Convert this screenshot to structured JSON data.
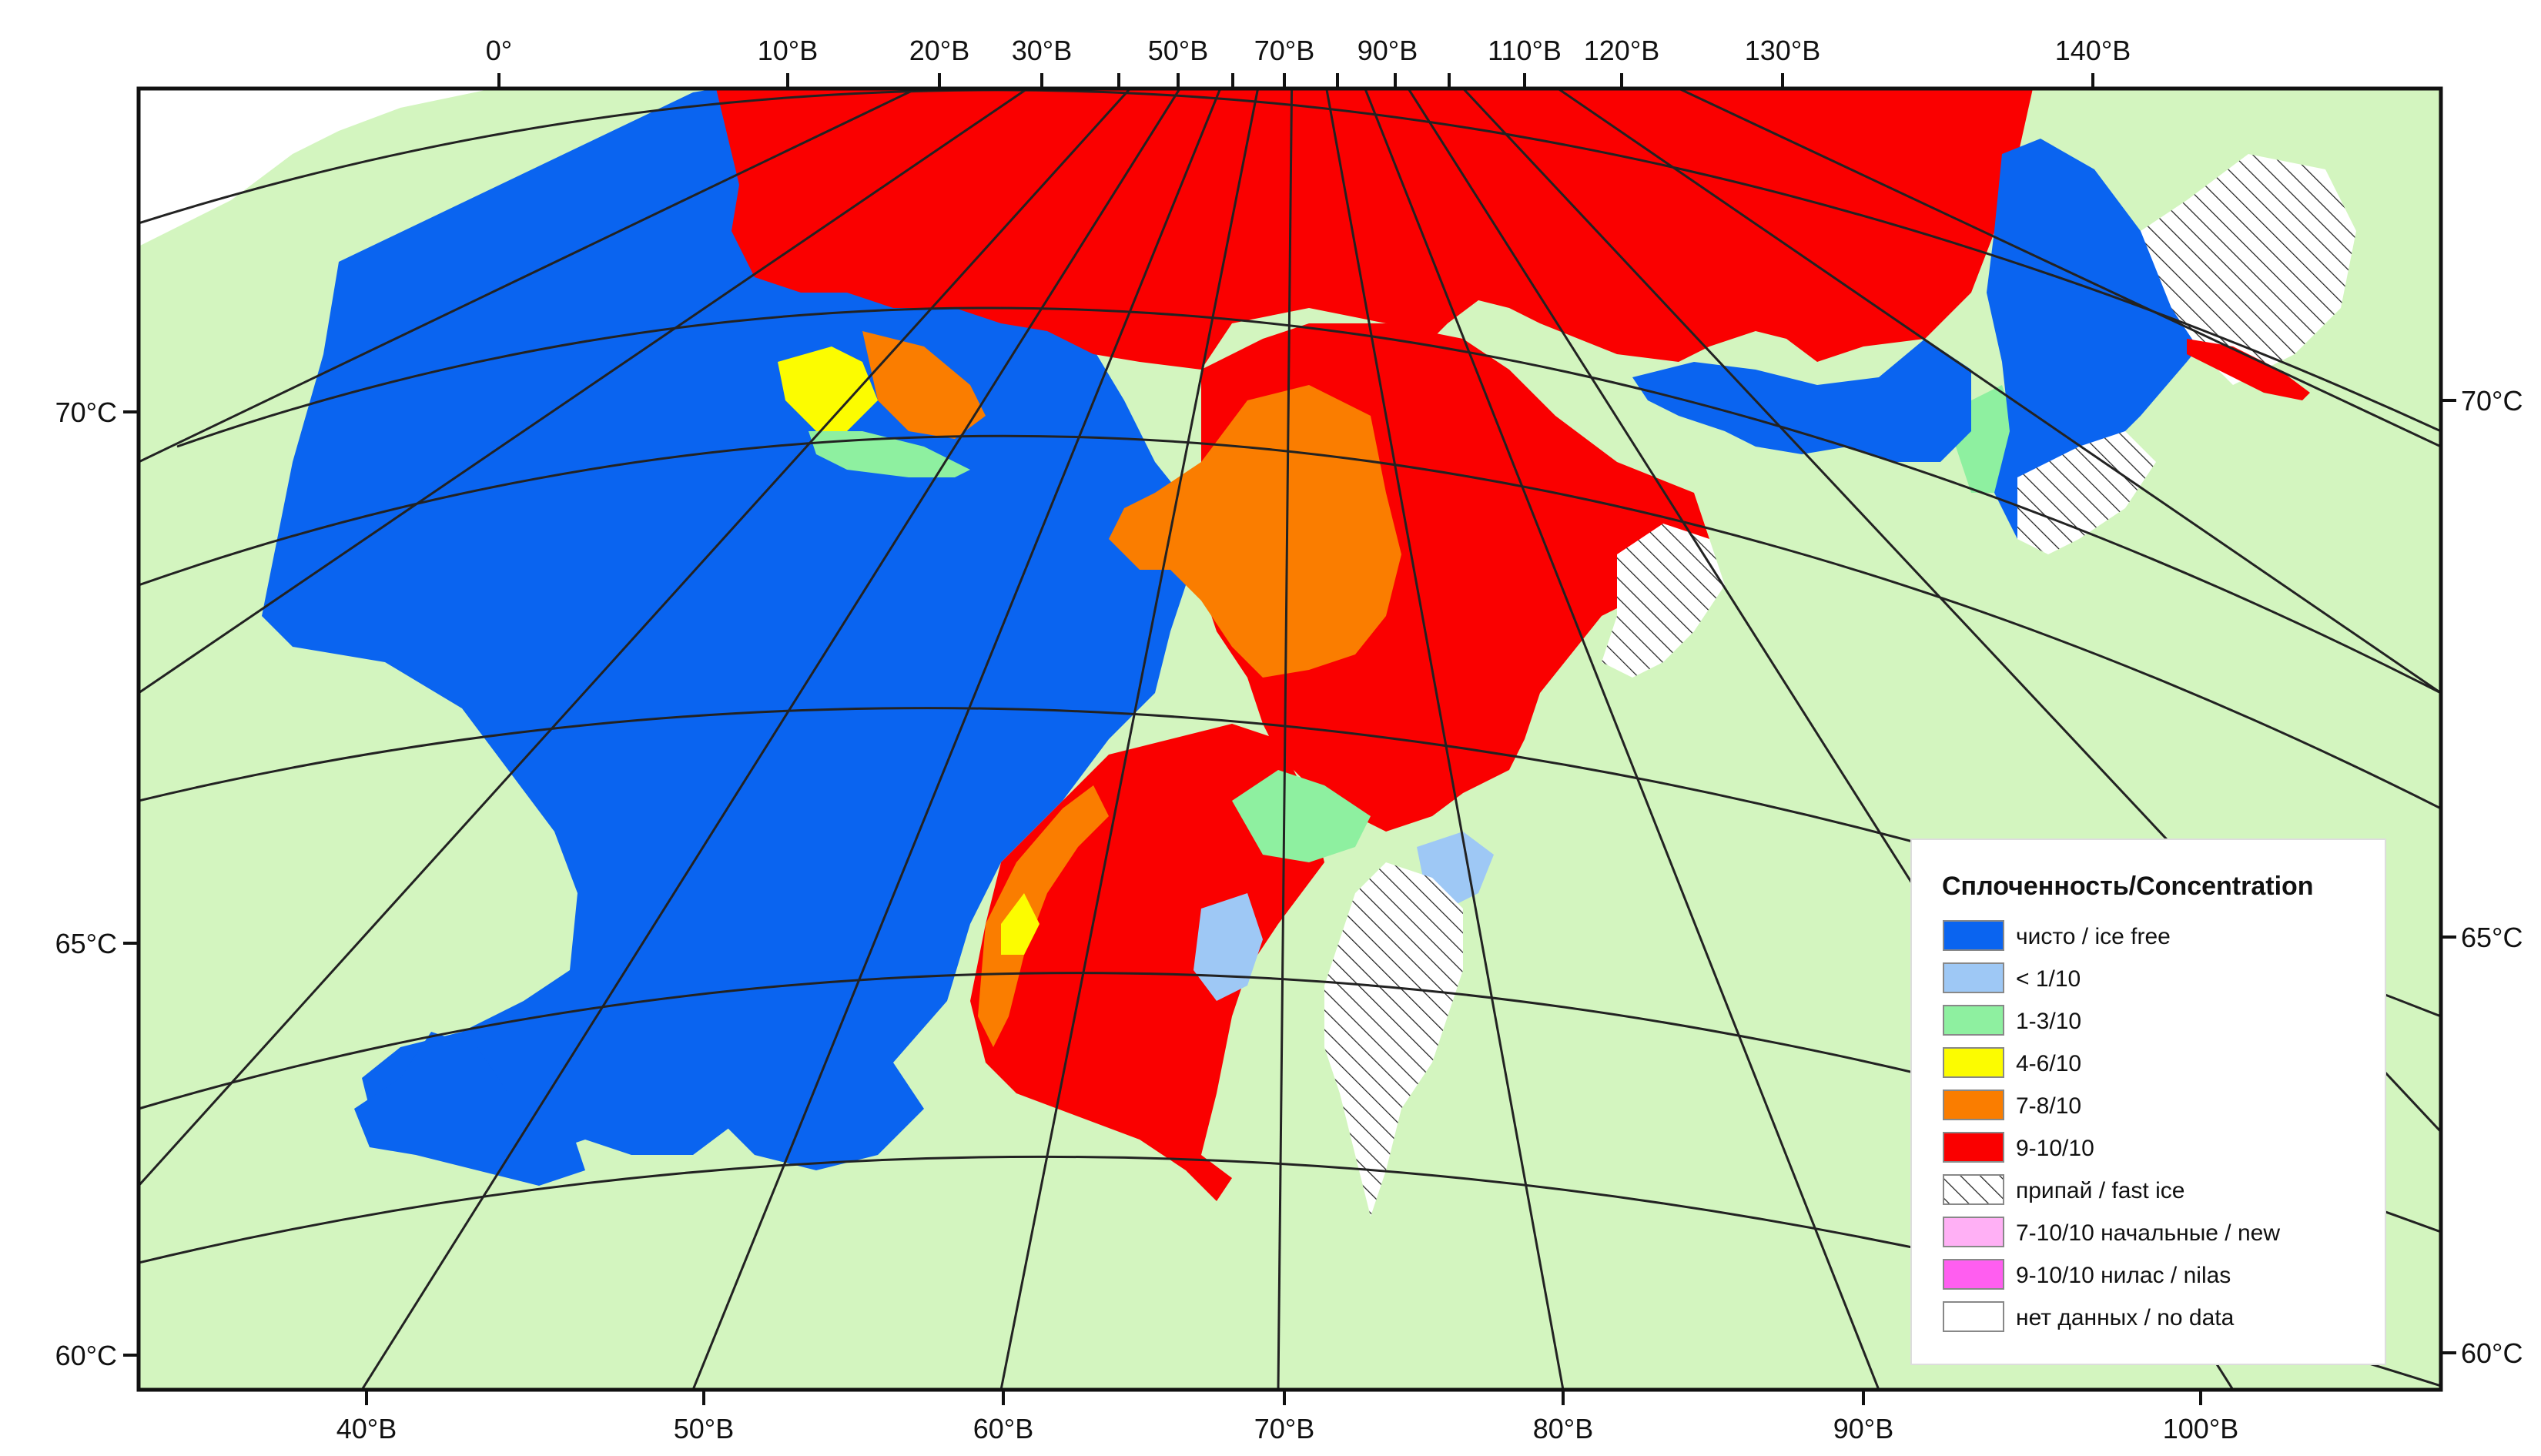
{
  "top_longitude_labels": [
    "0°",
    "10°В",
    "20°В",
    "30°В",
    "50°В",
    "70°В",
    "90°В",
    "110°В",
    "120°В",
    "130°В",
    "140°В"
  ],
  "bottom_longitude_labels": [
    "40°В",
    "50°В",
    "60°В",
    "70°В",
    "80°В",
    "90°В",
    "100°В"
  ],
  "left_latitude_labels": [
    "70°С",
    "65°С",
    "60°С"
  ],
  "right_latitude_labels": [
    "70°С",
    "65°С",
    "60°С"
  ],
  "legend": {
    "title": "Сплоченность/Concentration",
    "items": [
      {
        "label": "чисто / ice free",
        "color": "#0a64f0"
      },
      {
        "label": "< 1/10",
        "color": "#9ec8f5"
      },
      {
        "label": "1-3/10",
        "color": "#8ef0a0"
      },
      {
        "label": "4-6/10",
        "color": "#fcfc00"
      },
      {
        "label": "7-8/10",
        "color": "#fa7d00"
      },
      {
        "label": "9-10/10",
        "color": "#fa0000"
      },
      {
        "label": "припай / fast ice",
        "color": "hatch"
      },
      {
        "label": "7-10/10 начальные / new",
        "color": "#ffb0f5"
      },
      {
        "label": "9-10/10 нилас / nilas",
        "color": "#ff5ef0"
      },
      {
        "label": "нет данных / no data",
        "color": "#ffffff"
      }
    ]
  },
  "colors": {
    "land": "#d3f5bf",
    "ice_free": "#0a64f0",
    "lt1": "#9ec8f5",
    "c13": "#8ef0a0",
    "c46": "#fcfc00",
    "c78": "#fa7d00",
    "c910": "#fa0000",
    "no_data": "#ffffff"
  }
}
